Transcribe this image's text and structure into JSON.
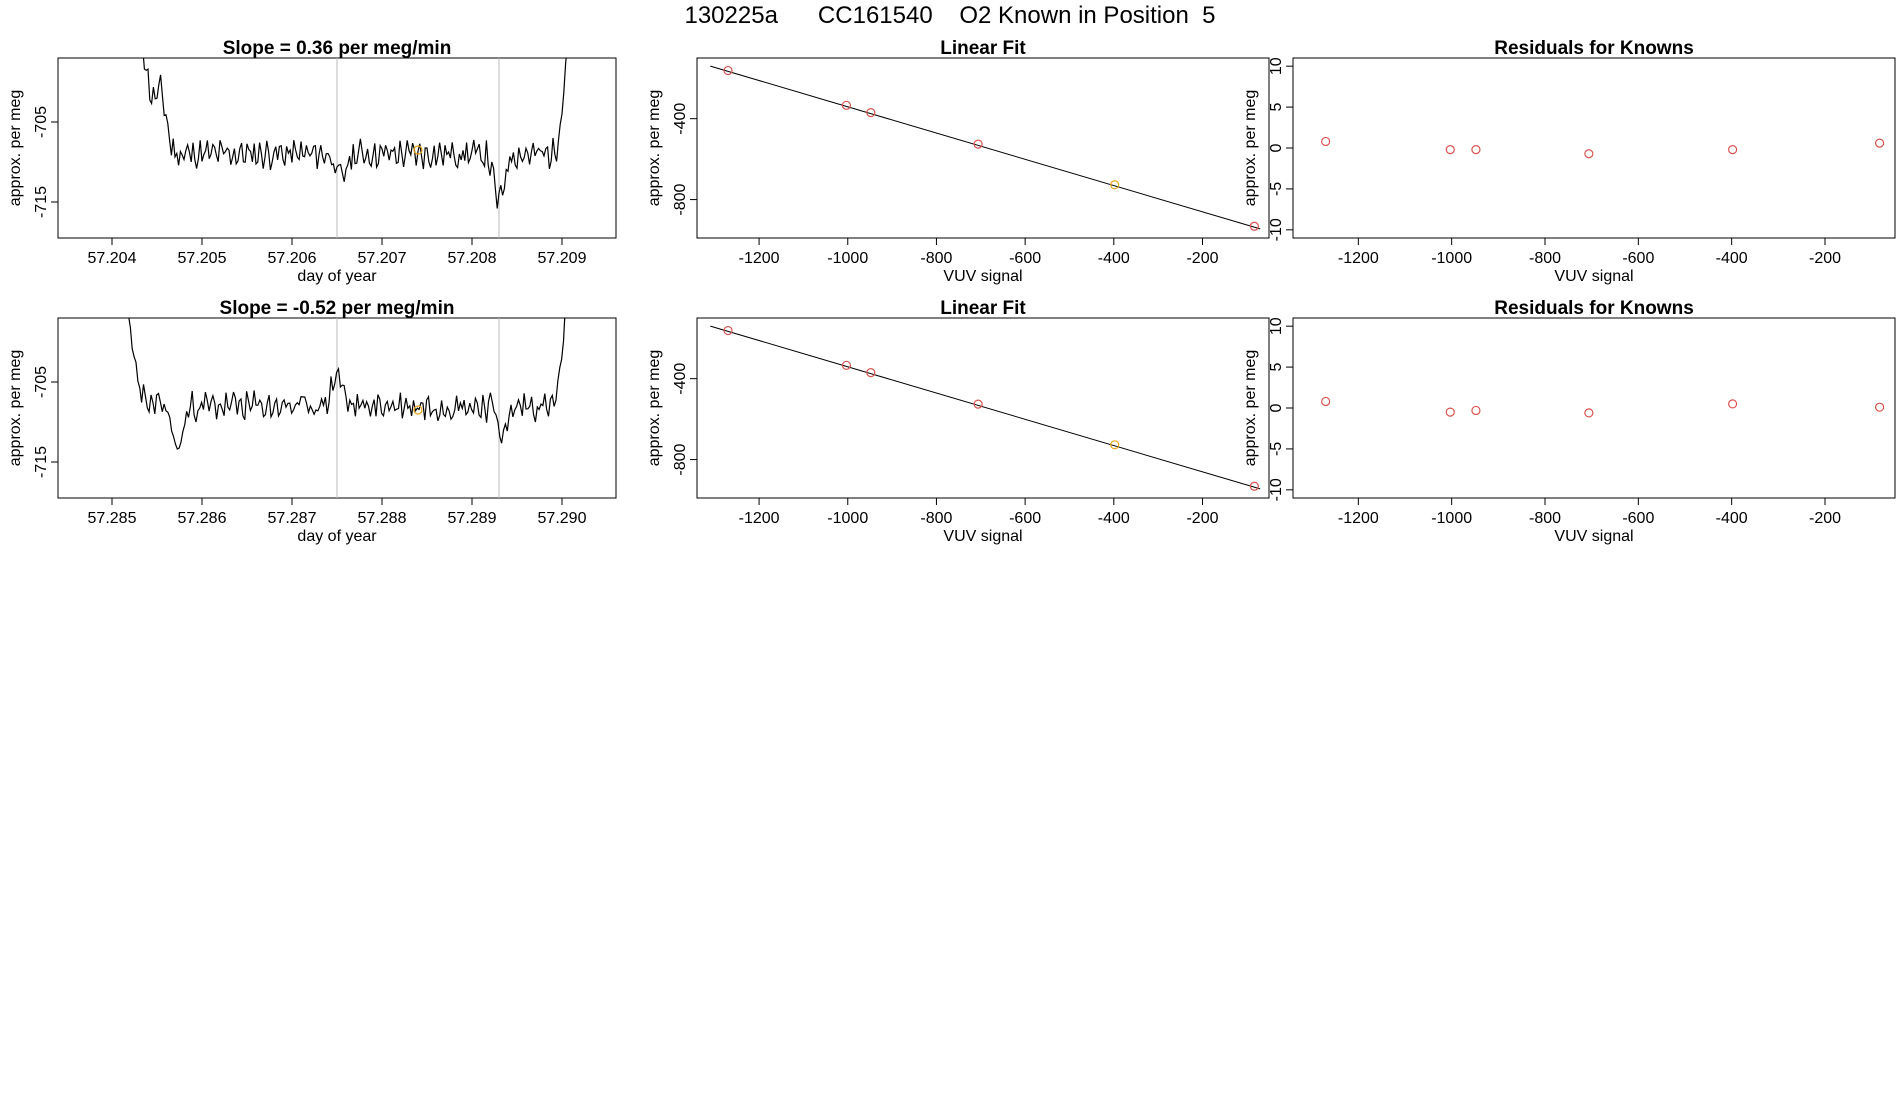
{
  "title": "130225a      CC161540    O2 Known in Position  5",
  "colors": {
    "line": "#000000",
    "point": "#d9534f",
    "highlight": "#e8a317",
    "vline": "#bbbbbb"
  },
  "chart_data": [
    {
      "type": "line",
      "title": "Slope =  0.36  per meg/min",
      "xlabel": "day of year",
      "ylabel": "approx. per meg",
      "xlim": [
        57.2034,
        57.2096
      ],
      "ylim": [
        -719.5,
        -697
      ],
      "xticks": [
        "57.204",
        "57.205",
        "57.206",
        "57.207",
        "57.208",
        "57.209"
      ],
      "yticks": [
        "-705",
        "-715"
      ],
      "vlines": [
        57.2065,
        57.2083
      ],
      "highlight_point": {
        "x": 57.2074,
        "y": -708.5
      },
      "start": 57.2043,
      "end": 57.2091,
      "seed": 11,
      "base_y": -709,
      "noise": 1.3,
      "features": [
        [
          57.20455,
          -702.0
        ],
        [
          57.20655,
          -712.0
        ],
        [
          57.2083,
          -715.0
        ]
      ]
    },
    {
      "type": "scatter",
      "title": "Linear Fit",
      "xlabel": "VUV signal",
      "ylabel": "approx. per meg",
      "xlim": [
        -1340,
        -50
      ],
      "ylim": [
        -990,
        -100
      ],
      "xticks": [
        "-1200",
        "-1000",
        "-800",
        "-600",
        "-400",
        "-200"
      ],
      "yticks": [
        "-400",
        "-800"
      ],
      "fit_line": {
        "x": [
          -1310,
          -70
        ],
        "y": [
          -140,
          -945
        ]
      },
      "x": [
        -1270,
        -1003,
        -948,
        -706,
        -398,
        -83
      ],
      "y": [
        -162,
        -334,
        -370,
        -526,
        -727,
        -932
      ],
      "highlight_index": 4
    },
    {
      "type": "scatter",
      "title": "Residuals for Knowns",
      "xlabel": "VUV signal",
      "ylabel": "approx. per meg",
      "xlim": [
        -1340,
        -50
      ],
      "ylim": [
        -11,
        11
      ],
      "xticks": [
        "-1200",
        "-1000",
        "-800",
        "-600",
        "-400",
        "-200"
      ],
      "yticks": [
        "10",
        "5",
        "0",
        "-5",
        "-10"
      ],
      "x": [
        -1270,
        -1003,
        -948,
        -706,
        -398,
        -83
      ],
      "y": [
        0.8,
        -0.2,
        -0.2,
        -0.7,
        -0.2,
        0.6
      ]
    },
    {
      "type": "line",
      "title": "Slope =  -0.52  per meg/min",
      "xlabel": "day of year",
      "ylabel": "approx. per meg",
      "xlim": [
        57.2844,
        57.2906
      ],
      "ylim": [
        -719.5,
        -697
      ],
      "xticks": [
        "57.285",
        "57.286",
        "57.287",
        "57.288",
        "57.289",
        "57.290"
      ],
      "yticks": [
        "-705",
        "-715"
      ],
      "vlines": [
        57.2875,
        57.2893
      ],
      "highlight_point": {
        "x": 57.2884,
        "y": -708.5
      },
      "start": 57.2851,
      "end": 57.2901,
      "seed": 23,
      "base_y": -708,
      "noise": 1.3,
      "features": [
        [
          57.28573,
          -713.5
        ],
        [
          57.2875,
          -704.0
        ],
        [
          57.28935,
          -711.5
        ]
      ]
    },
    {
      "type": "scatter",
      "title": "Linear Fit",
      "xlabel": "VUV signal",
      "ylabel": "approx. per meg",
      "xlim": [
        -1340,
        -50
      ],
      "ylim": [
        -990,
        -100
      ],
      "xticks": [
        "-1200",
        "-1000",
        "-800",
        "-600",
        "-400",
        "-200"
      ],
      "yticks": [
        "-400",
        "-800"
      ],
      "fit_line": {
        "x": [
          -1310,
          -70
        ],
        "y": [
          -140,
          -945
        ]
      },
      "x": [
        -1270,
        -1003,
        -948,
        -706,
        -398,
        -83
      ],
      "y": [
        -162,
        -334,
        -370,
        -526,
        -727,
        -932
      ],
      "highlight_index": 4
    },
    {
      "type": "scatter",
      "title": "Residuals for Knowns",
      "xlabel": "VUV signal",
      "ylabel": "approx. per meg",
      "xlim": [
        -1340,
        -50
      ],
      "ylim": [
        -11,
        11
      ],
      "xticks": [
        "-1200",
        "-1000",
        "-800",
        "-600",
        "-400",
        "-200"
      ],
      "yticks": [
        "10",
        "5",
        "0",
        "-5",
        "-10"
      ],
      "x": [
        -1270,
        -1003,
        -948,
        -706,
        -398,
        -83
      ],
      "y": [
        0.8,
        -0.5,
        -0.3,
        -0.6,
        0.5,
        0.1
      ]
    }
  ]
}
